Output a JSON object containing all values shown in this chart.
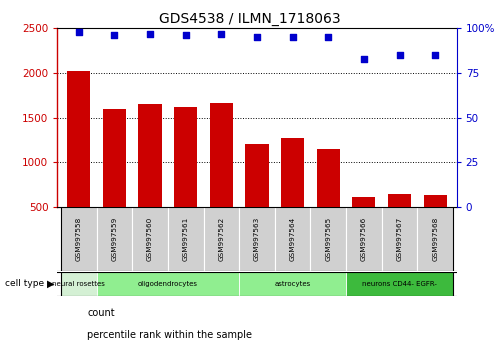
{
  "title": "GDS4538 / ILMN_1718063",
  "samples": [
    "GSM997558",
    "GSM997559",
    "GSM997560",
    "GSM997561",
    "GSM997562",
    "GSM997563",
    "GSM997564",
    "GSM997565",
    "GSM997566",
    "GSM997567",
    "GSM997568"
  ],
  "counts": [
    2020,
    1600,
    1650,
    1615,
    1665,
    1210,
    1270,
    1155,
    610,
    645,
    630
  ],
  "percentiles": [
    98,
    96,
    97,
    96,
    97,
    95,
    95,
    95,
    83,
    85,
    85
  ],
  "bar_color": "#cc0000",
  "dot_color": "#0000cc",
  "ylim_left": [
    500,
    2500
  ],
  "ylim_right": [
    0,
    100
  ],
  "yticks_left": [
    500,
    1000,
    1500,
    2000,
    2500
  ],
  "yticks_right": [
    0,
    25,
    50,
    75,
    100
  ],
  "cell_types_spans": [
    {
      "label": "neural rosettes",
      "indices": [
        0
      ],
      "color": "#d4f0d4"
    },
    {
      "label": "oligodendrocytes",
      "indices": [
        1,
        2,
        3,
        4
      ],
      "color": "#90ee90"
    },
    {
      "label": "astrocytes",
      "indices": [
        5,
        6,
        7
      ],
      "color": "#90ee90"
    },
    {
      "label": "neurons CD44- EGFR-",
      "indices": [
        8,
        9,
        10
      ],
      "color": "#3dba3d"
    }
  ],
  "cell_type_label": "cell type",
  "legend_count": "count",
  "legend_percentile": "percentile rank within the sample",
  "background_color": "#ffffff",
  "tick_color_left": "#cc0000",
  "tick_color_right": "#0000cc",
  "sample_box_color": "#d0d0d0",
  "grid_yticks": [
    1000,
    1500,
    2000
  ]
}
